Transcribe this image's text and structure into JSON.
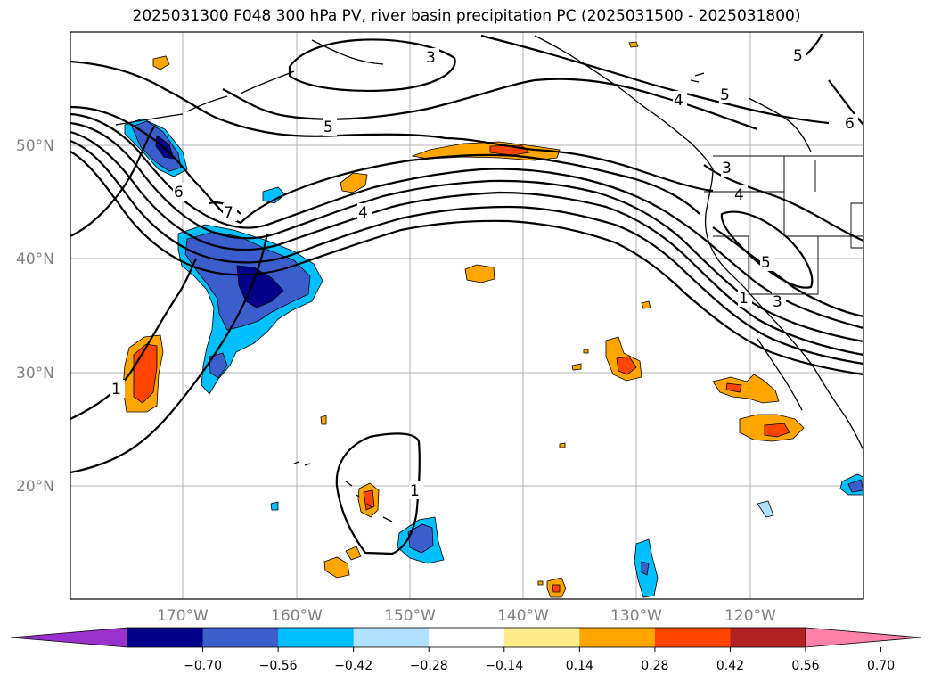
{
  "title": "2025031300 F048 300 hPa PV, river basin precipitation PC (2025031500 - 2025031800)",
  "map": {
    "projection": "PlateCarree",
    "lon_range": [
      -180,
      -110
    ],
    "lat_range": [
      10,
      60
    ],
    "lat_ticks": [
      {
        "value": 50,
        "label": "50°N"
      },
      {
        "value": 40,
        "label": "40°N"
      },
      {
        "value": 30,
        "label": "30°N"
      },
      {
        "value": 20,
        "label": "20°N"
      }
    ],
    "lon_ticks": [
      {
        "value": -170,
        "label": "170°W"
      },
      {
        "value": -160,
        "label": "160°W"
      },
      {
        "value": -150,
        "label": "150°W"
      },
      {
        "value": -140,
        "label": "140°W"
      },
      {
        "value": -130,
        "label": "130°W"
      },
      {
        "value": -120,
        "label": "120°W"
      }
    ],
    "gridlines": true,
    "contour_labels": [
      "1",
      "3",
      "4",
      "5",
      "6",
      "7"
    ]
  },
  "colorbar": {
    "orientation": "horizontal",
    "extend": "both",
    "colors": [
      "#9932cc",
      "#00008b",
      "#3a5fcd",
      "#00bfff",
      "#b0e2ff",
      "#ffffff",
      "#ffec8b",
      "#ffa500",
      "#ff4500",
      "#b22222",
      "#ff82ab"
    ],
    "tick_labels": [
      "−0.70",
      "−0.56",
      "−0.42",
      "−0.28",
      "−0.14",
      "0.14",
      "0.28",
      "0.42",
      "0.56",
      "0.70"
    ]
  }
}
